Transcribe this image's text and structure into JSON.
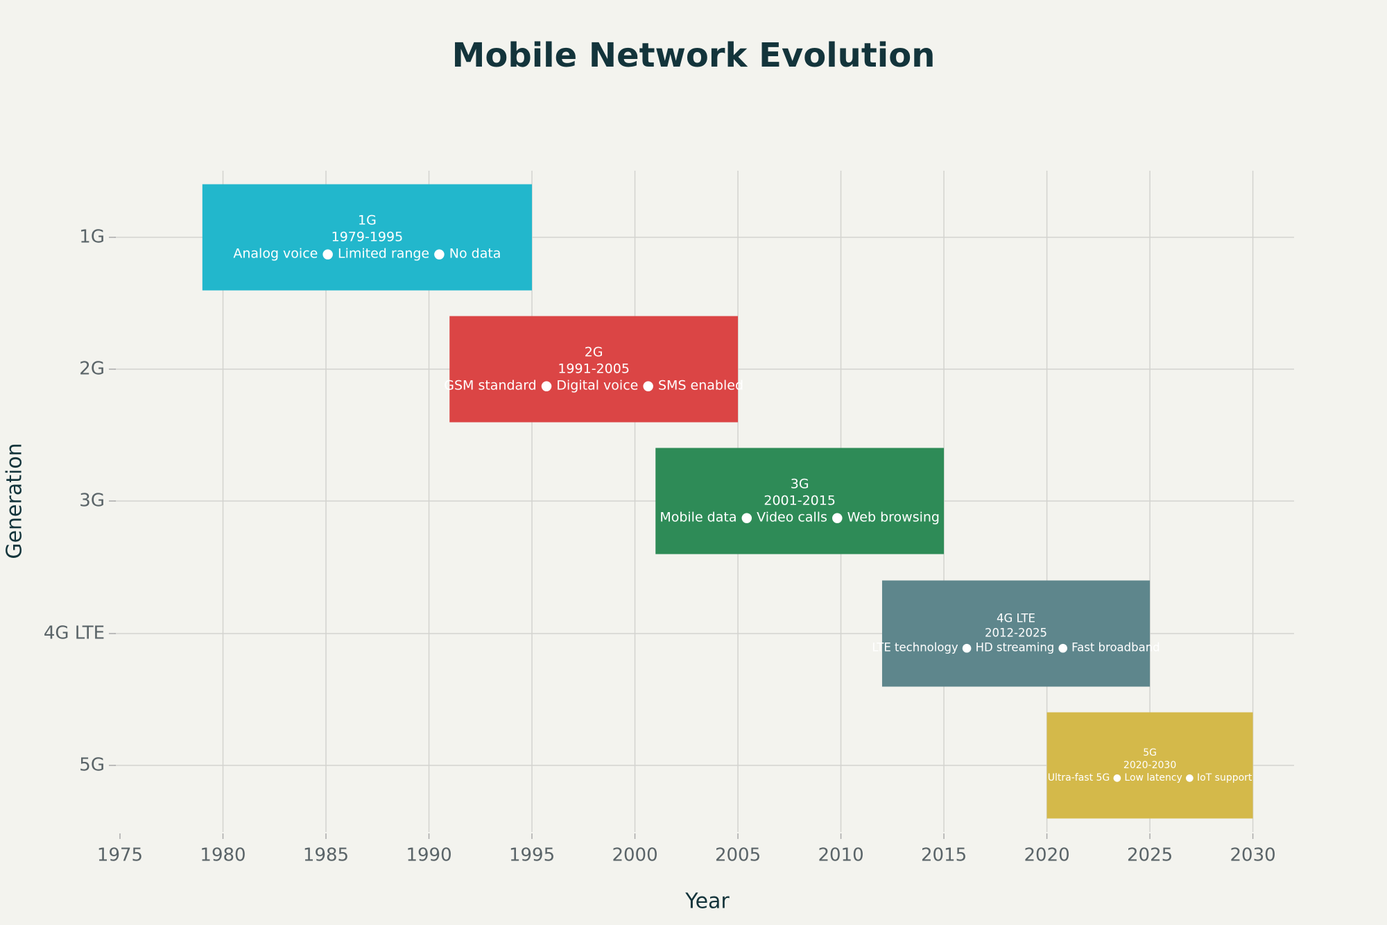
{
  "chart_data": {
    "type": "gantt",
    "title": "Mobile Network Evolution",
    "x_label": "Year",
    "y_label": "Generation",
    "categories": [
      "1G",
      "2G",
      "3G",
      "4G LTE",
      "5G"
    ],
    "start": [
      1979,
      1991,
      2001,
      2012,
      2020
    ],
    "end": [
      1995,
      2005,
      2015,
      2025,
      2030
    ],
    "range_labels": [
      "1979-1995",
      "1991-2005",
      "2001-2015",
      "2012-2025",
      "2020-2030"
    ],
    "notes": [
      "Analog voice ● Limited range ● No data",
      "GSM standard ● Digital voice ● SMS enabled",
      "Mobile data ● Video calls ● Web browsing",
      "LTE technology ● HD streaming ● Fast broadband",
      "Ultra-fast 5G ● Low latency ● IoT support"
    ],
    "colors": [
      "#22b7cc",
      "#db4545",
      "#2e8b57",
      "#5e868c",
      "#d4b94a"
    ],
    "xlim": [
      1975,
      2032
    ],
    "xticks": [
      1975,
      1980,
      1985,
      1990,
      1995,
      2000,
      2005,
      2010,
      2015,
      2020,
      2025,
      2030
    ],
    "grid": true
  }
}
